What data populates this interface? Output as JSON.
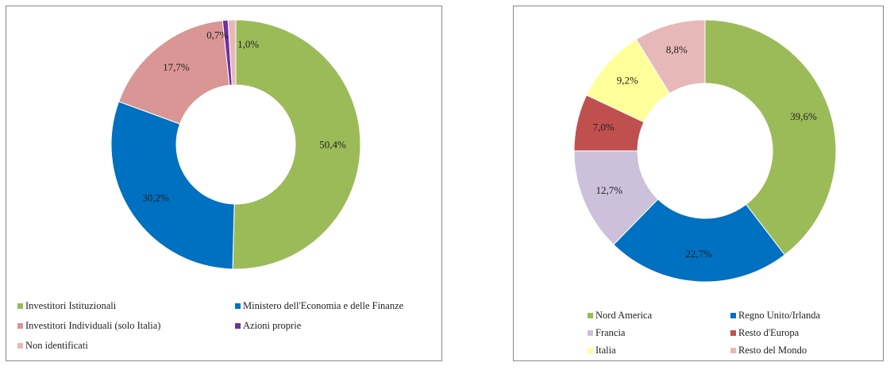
{
  "chart_data": [
    {
      "type": "donut",
      "categories": [
        "Investitori Istituzionali",
        "Ministero dell'Economia e delle Finanze",
        "Investitori Individuali (solo Italia)",
        "Azioni proprie",
        "Non identificati"
      ],
      "values": [
        50.4,
        30.2,
        17.7,
        0.7,
        1.0
      ],
      "value_labels": [
        "50,4%",
        "30,2%",
        "17,7%",
        "0,7%",
        "1,0%"
      ],
      "colors": [
        "#9bbb59",
        "#0070c0",
        "#d99694",
        "#7030a0",
        "#e6b9b8"
      ]
    },
    {
      "type": "donut",
      "categories": [
        "Nord America",
        "Regno Unito/Irlanda",
        "Francia",
        "Resto d'Europa",
        "Italia",
        "Resto del Mondo"
      ],
      "values": [
        39.6,
        22.7,
        12.7,
        7.0,
        9.2,
        8.8
      ],
      "value_labels": [
        "39,6%",
        "22,7%",
        "12,7%",
        "7,0%",
        "9,2%",
        "8,8%"
      ],
      "colors": [
        "#9bbb59",
        "#0070c0",
        "#ccc0da",
        "#c0504d",
        "#ffff99",
        "#e6b9b8"
      ]
    }
  ]
}
